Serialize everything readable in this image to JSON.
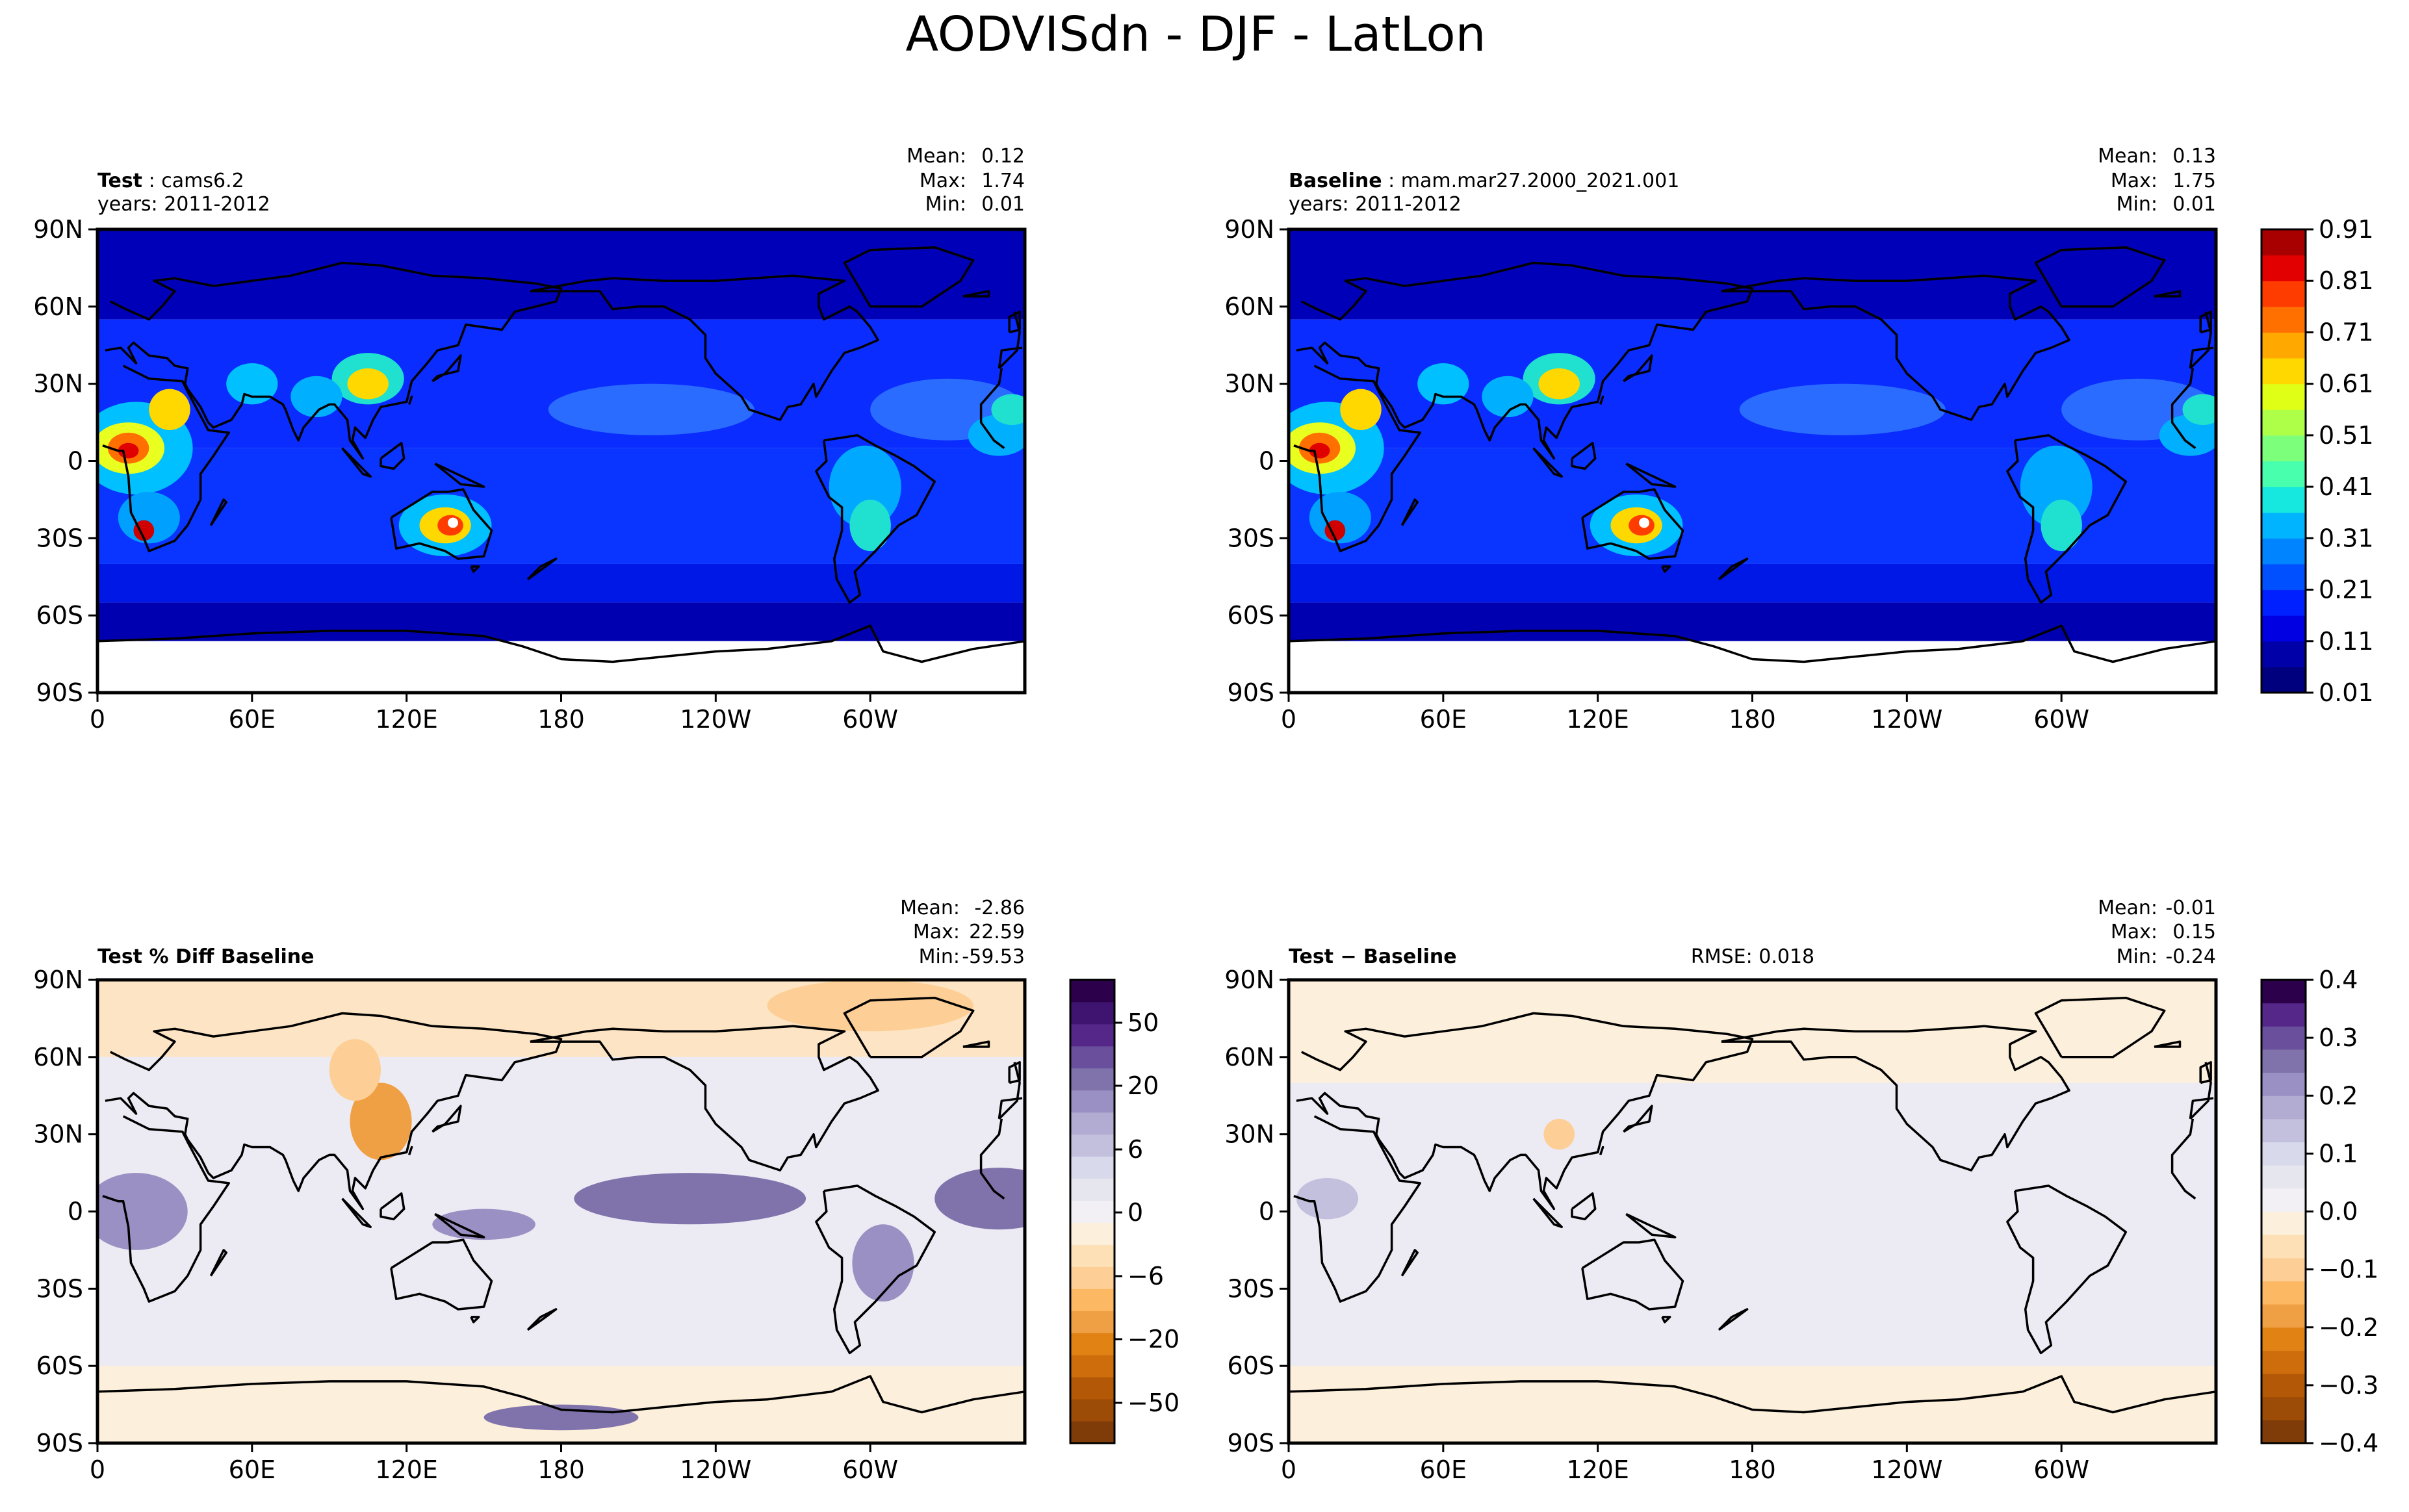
{
  "figure_title": "AODVISdn - DJF - LatLon",
  "chart_data": [
    {
      "type": "heatmap",
      "panel": "test",
      "case_label": "Test",
      "case_name": "cams6.2",
      "years_label": "years: 2011-2012",
      "stats": {
        "mean_label": "Mean:",
        "mean": "0.12",
        "max_label": "Max:",
        "max": "1.74",
        "min_label": "Min:",
        "min": "0.01"
      },
      "variable": "AODVISdn",
      "xticks": [
        "0",
        "60E",
        "120E",
        "180",
        "120W",
        "60W"
      ],
      "yticks": [
        "90N",
        "60N",
        "30N",
        "0",
        "30S",
        "60S",
        "90S"
      ],
      "xlim": [
        0,
        360
      ],
      "ylim": [
        -90,
        90
      ],
      "colorbar": "shared-abs"
    },
    {
      "type": "heatmap",
      "panel": "baseline",
      "case_label": "Baseline",
      "case_name": "mam.mar27.2000_2021.001",
      "years_label": "years: 2011-2012",
      "stats": {
        "mean_label": "Mean:",
        "mean": "0.13",
        "max_label": "Max:",
        "max": "1.75",
        "min_label": "Min:",
        "min": "0.01"
      },
      "variable": "AODVISdn",
      "xticks": [
        "0",
        "60E",
        "120E",
        "180",
        "120W",
        "60W"
      ],
      "yticks": [
        "90N",
        "60N",
        "30N",
        "0",
        "30S",
        "60S",
        "90S"
      ],
      "xlim": [
        0,
        360
      ],
      "ylim": [
        -90,
        90
      ],
      "colorbar": "shared-abs"
    },
    {
      "type": "heatmap",
      "panel": "pct-diff",
      "case_label": "Test % Diff Baseline",
      "stats": {
        "mean_label": "Mean:",
        "mean": "-2.86",
        "max_label": "Max:",
        "max": "22.59",
        "min_label": "Min:",
        "min": "-59.53"
      },
      "xticks": [
        "0",
        "60E",
        "120E",
        "180",
        "120W",
        "60W"
      ],
      "yticks": [
        "90N",
        "60N",
        "30N",
        "0",
        "30S",
        "60S",
        "90S"
      ],
      "xlim": [
        0,
        360
      ],
      "ylim": [
        -90,
        90
      ],
      "colorbar": "pct"
    },
    {
      "type": "heatmap",
      "panel": "diff",
      "case_label": "Test − Baseline",
      "rmse_label": "RMSE: 0.018",
      "stats": {
        "mean_label": "Mean:",
        "mean": "-0.01",
        "max_label": "Max:",
        "max": "0.15",
        "min_label": "Min:",
        "min": "-0.24"
      },
      "xticks": [
        "0",
        "60E",
        "120E",
        "180",
        "120W",
        "60W"
      ],
      "yticks": [
        "90N",
        "60N",
        "30N",
        "0",
        "30S",
        "60S",
        "90S"
      ],
      "xlim": [
        0,
        360
      ],
      "ylim": [
        -90,
        90
      ],
      "colorbar": "diff"
    }
  ],
  "colorbars": {
    "abs": {
      "ticks": [
        "0.01",
        "0.11",
        "0.21",
        "0.31",
        "0.41",
        "0.51",
        "0.61",
        "0.71",
        "0.81",
        "0.91"
      ],
      "colors": [
        "#00007f",
        "#0000a8",
        "#0000e3",
        "#0020ff",
        "#0050ff",
        "#0084ff",
        "#00b4ff",
        "#16e8e0",
        "#48ffae",
        "#7cff7a",
        "#aeff48",
        "#e0ff16",
        "#ffd800",
        "#ffa800",
        "#ff7000",
        "#ff3c00",
        "#e30000",
        "#a80000"
      ]
    },
    "pct": {
      "ticks": [
        "50",
        "20",
        "6",
        "0",
        "−6",
        "−20",
        "−50"
      ],
      "colors": [
        "#7f3b08",
        "#9c4c07",
        "#b35806",
        "#cd6d0c",
        "#e08214",
        "#f0a044",
        "#fdb863",
        "#fdcf96",
        "#fee0b6",
        "#fcefdc",
        "#f3f0f5",
        "#e6e6ef",
        "#d8daeb",
        "#c2c0dc",
        "#b2abd2",
        "#9a90c3",
        "#8073ac",
        "#6a4f9c",
        "#542788",
        "#3f1470",
        "#2d004b"
      ]
    },
    "diff": {
      "ticks": [
        "0.4",
        "0.3",
        "0.2",
        "0.1",
        "0.0",
        "−0.1",
        "−0.2",
        "−0.3",
        "−0.4"
      ],
      "colors": [
        "#7f3b08",
        "#9c4c07",
        "#b35806",
        "#cd6d0c",
        "#e08214",
        "#f0a044",
        "#fdb863",
        "#fdcf96",
        "#fee0b6",
        "#fcefdc",
        "#f3f0f5",
        "#e6e6ef",
        "#d8daeb",
        "#c2c0dc",
        "#b2abd2",
        "#9a90c3",
        "#8073ac",
        "#6a4f9c",
        "#542788",
        "#2d004b"
      ]
    }
  }
}
